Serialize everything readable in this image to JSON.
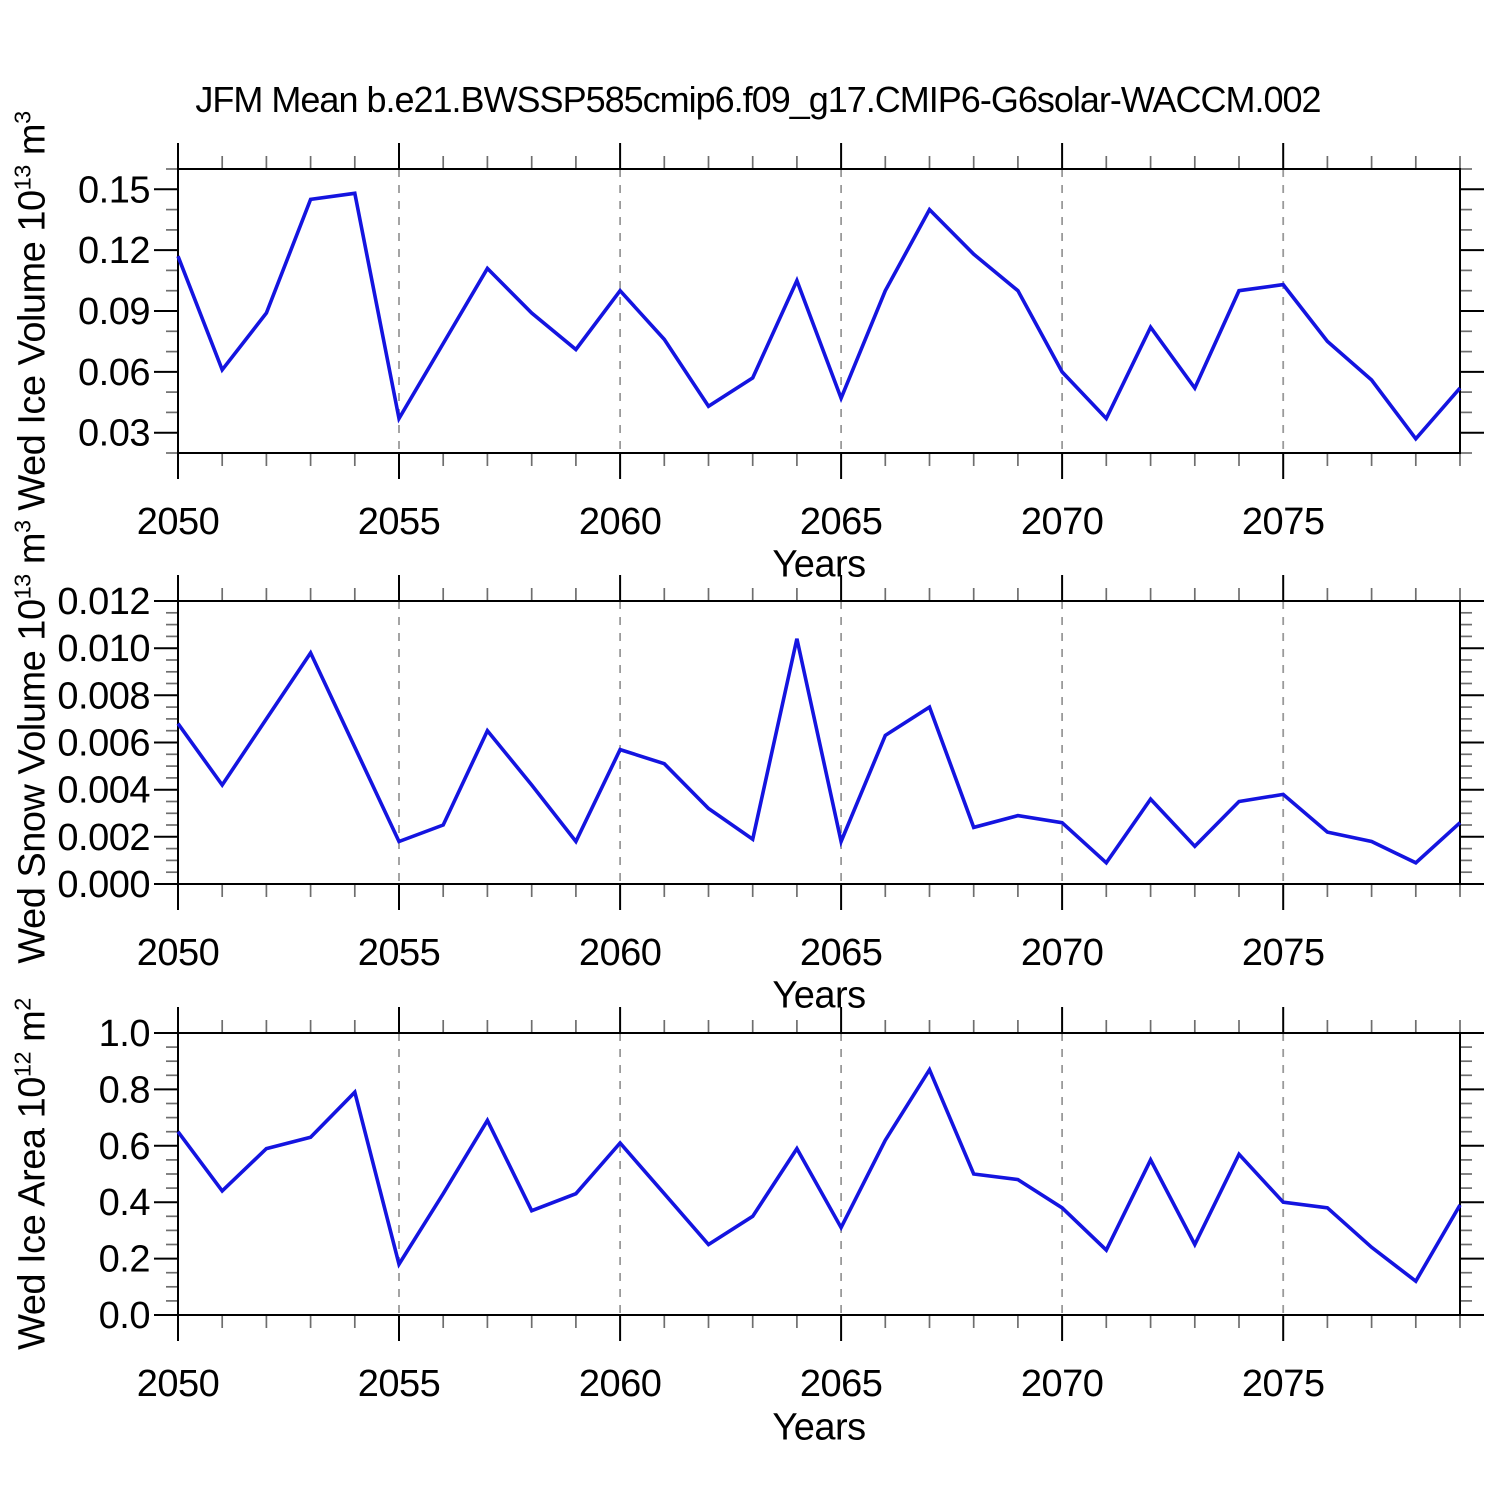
{
  "title": "JFM Mean b.e21.BWSSP585cmip6.f09_g17.CMIP6-G6solar-WACCM.002",
  "colors": {
    "line": "#1414e0",
    "grid": "#9a9a9a",
    "axis": "#000000"
  },
  "chart_data": [
    {
      "type": "line",
      "ylabel": "Wed Ice Volume 10^13 m^3",
      "ylabel_parts": [
        {
          "t": "Wed Ice Volume 10"
        },
        {
          "t": "13",
          "sup": true
        },
        {
          "t": " m"
        },
        {
          "t": "3",
          "sup": true
        }
      ],
      "xlabel": "Years",
      "xlim": [
        2050,
        2079
      ],
      "ylim": [
        0.02,
        0.16
      ],
      "yticks": [
        0.03,
        0.06,
        0.09,
        0.12,
        0.15
      ],
      "ytick_labels": [
        "0.03",
        "0.06",
        "0.09",
        "0.12",
        "0.15"
      ],
      "yminor_step": 0.01,
      "xticks": [
        2050,
        2055,
        2060,
        2065,
        2070,
        2075
      ],
      "xtick_labels": [
        "2050",
        "2055",
        "2060",
        "2065",
        "2070",
        "2075"
      ],
      "grid_years": [
        2055,
        2060,
        2065,
        2070,
        2075
      ],
      "grid": true,
      "legend": "none",
      "years": [
        2050,
        2051,
        2052,
        2053,
        2054,
        2055,
        2056,
        2057,
        2058,
        2059,
        2060,
        2061,
        2062,
        2063,
        2064,
        2065,
        2066,
        2067,
        2068,
        2069,
        2070,
        2071,
        2072,
        2073,
        2074,
        2075,
        2076,
        2077,
        2078,
        2079
      ],
      "values": [
        0.117,
        0.061,
        0.089,
        0.145,
        0.148,
        0.037,
        0.074,
        0.111,
        0.089,
        0.071,
        0.1,
        0.076,
        0.043,
        0.057,
        0.105,
        0.047,
        0.1,
        0.14,
        0.118,
        0.1,
        0.06,
        0.037,
        0.082,
        0.052,
        0.1,
        0.103,
        0.075,
        0.056,
        0.027,
        0.052
      ]
    },
    {
      "type": "line",
      "ylabel": "Wed Snow Volume 10^13 m^3",
      "ylabel_parts": [
        {
          "t": "Wed Snow Volume 10"
        },
        {
          "t": "13",
          "sup": true
        },
        {
          "t": " m"
        },
        {
          "t": "3",
          "sup": true
        }
      ],
      "xlabel": "Years",
      "xlim": [
        2050,
        2079
      ],
      "ylim": [
        0.0,
        0.012
      ],
      "yticks": [
        0.0,
        0.002,
        0.004,
        0.006,
        0.008,
        0.01,
        0.012
      ],
      "ytick_labels": [
        "0.000",
        "0.002",
        "0.004",
        "0.006",
        "0.008",
        "0.010",
        "0.012"
      ],
      "yminor_step": 0.0005,
      "xticks": [
        2050,
        2055,
        2060,
        2065,
        2070,
        2075
      ],
      "xtick_labels": [
        "2050",
        "2055",
        "2060",
        "2065",
        "2070",
        "2075"
      ],
      "grid_years": [
        2055,
        2060,
        2065,
        2070,
        2075
      ],
      "grid": true,
      "legend": "none",
      "years": [
        2050,
        2051,
        2052,
        2053,
        2054,
        2055,
        2056,
        2057,
        2058,
        2059,
        2060,
        2061,
        2062,
        2063,
        2064,
        2065,
        2066,
        2067,
        2068,
        2069,
        2070,
        2071,
        2072,
        2073,
        2074,
        2075,
        2076,
        2077,
        2078,
        2079
      ],
      "values": [
        0.0068,
        0.0042,
        0.007,
        0.0098,
        0.0058,
        0.0018,
        0.0025,
        0.0065,
        0.0042,
        0.0018,
        0.0057,
        0.0051,
        0.0032,
        0.0019,
        0.0104,
        0.0018,
        0.0063,
        0.0075,
        0.0024,
        0.0029,
        0.0026,
        0.0009,
        0.0036,
        0.0016,
        0.0035,
        0.0038,
        0.0022,
        0.0018,
        0.0009,
        0.0026
      ]
    },
    {
      "type": "line",
      "ylabel": "Wed Ice Area 10^12 m^2",
      "ylabel_parts": [
        {
          "t": "Wed Ice Area 10"
        },
        {
          "t": "12",
          "sup": true
        },
        {
          "t": " m"
        },
        {
          "t": "2",
          "sup": true
        }
      ],
      "xlabel": "Years",
      "xlim": [
        2050,
        2079
      ],
      "ylim": [
        0.0,
        1.0
      ],
      "yticks": [
        0.0,
        0.2,
        0.4,
        0.6,
        0.8,
        1.0
      ],
      "ytick_labels": [
        "0.0",
        "0.2",
        "0.4",
        "0.6",
        "0.8",
        "1.0"
      ],
      "yminor_step": 0.05,
      "xticks": [
        2050,
        2055,
        2060,
        2065,
        2070,
        2075
      ],
      "xtick_labels": [
        "2050",
        "2055",
        "2060",
        "2065",
        "2070",
        "2075"
      ],
      "grid_years": [
        2055,
        2060,
        2065,
        2070,
        2075
      ],
      "grid": true,
      "legend": "none",
      "years": [
        2050,
        2051,
        2052,
        2053,
        2054,
        2055,
        2056,
        2057,
        2058,
        2059,
        2060,
        2061,
        2062,
        2063,
        2064,
        2065,
        2066,
        2067,
        2068,
        2069,
        2070,
        2071,
        2072,
        2073,
        2074,
        2075,
        2076,
        2077,
        2078,
        2079
      ],
      "values": [
        0.65,
        0.44,
        0.59,
        0.63,
        0.79,
        0.18,
        0.43,
        0.69,
        0.37,
        0.43,
        0.61,
        0.43,
        0.25,
        0.35,
        0.59,
        0.31,
        0.62,
        0.87,
        0.5,
        0.48,
        0.38,
        0.23,
        0.55,
        0.25,
        0.57,
        0.4,
        0.38,
        0.24,
        0.12,
        0.39
      ]
    }
  ]
}
